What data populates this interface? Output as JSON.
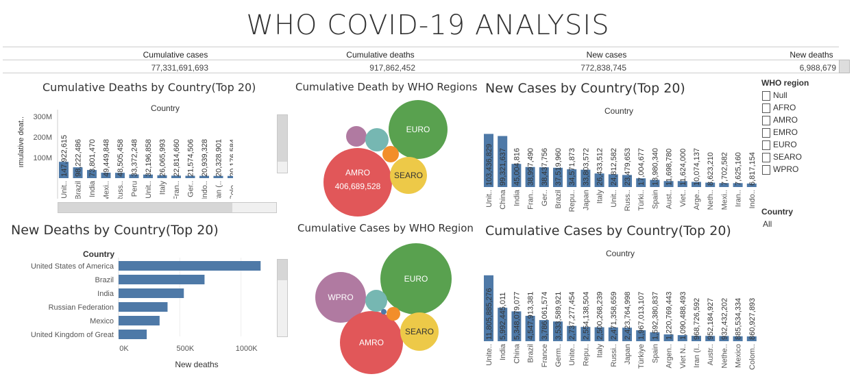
{
  "title": "WHO COVID-19 ANALYSIS",
  "kpis": [
    {
      "label": "Cumulative cases",
      "value": "77,331,691,693"
    },
    {
      "label": "Cumulative deaths",
      "value": "917,862,452"
    },
    {
      "label": "New cases",
      "value": "772,838,745"
    },
    {
      "label": "New deaths",
      "value": "6,988,679"
    }
  ],
  "filters": {
    "who_region_title": "WHO region",
    "who_regions": [
      "Null",
      "AFRO",
      "AMRO",
      "EMRO",
      "EURO",
      "SEARO",
      "WPRO"
    ],
    "country_title": "Country",
    "country_value": "All"
  },
  "colors": {
    "bar": "#4e79a7",
    "euro": "#59a14f",
    "amro": "#e15759",
    "searo": "#edc948",
    "wpro": "#b07aa1",
    "teal": "#76b7b2",
    "orange": "#f28e2b",
    "blue": "#4e79a7"
  },
  "chart_data": [
    {
      "id": "cum_deaths_country",
      "type": "bar",
      "title": "Cumulative Deaths by Country(Top 20)",
      "header": "Country",
      "ylabel": "ımulative deat..",
      "yticks": [
        "300M",
        "200M",
        "100M"
      ],
      "ylim": [
        0,
        360000000
      ],
      "categories": [
        "Unit..",
        "Brazil",
        "India",
        "Mexi..",
        "Russ..",
        "Peru",
        "Unit..",
        "Italy",
        "Fran..",
        "Ger..",
        "Indo..",
        "Iran (..",
        "Colo..",
        "Arge..",
        "Spain",
        "Pola.."
      ],
      "values": [
        147922615,
        98222486,
        73801470,
        49449848,
        48505458,
        33372248,
        32196858,
        26065993,
        22814660,
        21574506,
        20939328,
        20328901,
        20176584,
        18855200,
        17445007,
        15716319
      ],
      "labels": [
        "147,922,615",
        "98,222,486",
        "73,801,470",
        "49,449,848",
        "48,505,458",
        "33,372,248",
        "32,196,858",
        "26,065,993",
        "22,814,660",
        "21,574,506",
        "20,939,328",
        "20,328,901",
        "20,176,584",
        "18,855,200",
        "17,445,007",
        "15,716,319"
      ],
      "label_text": [
        "147,922,615",
        "98,222,486",
        "73,801,470",
        "49,449,848",
        "48,505,458",
        "33,372,248",
        "32,196,858",
        "26,065,993",
        "22,814,660",
        "21,574,506",
        "20,939,328",
        "20,328,901",
        "20,176,584",
        "18,855,200",
        "17,445,007",
        "15,716,319"
      ]
    },
    {
      "id": "cum_death_region",
      "type": "bubble",
      "title": "Cumulative Death by WHO Regions",
      "bubbles": [
        {
          "name": "EURO",
          "label": "EURO",
          "value": null,
          "color": "euro"
        },
        {
          "name": "AMRO",
          "label": "AMRO",
          "value": 406689528,
          "value_label": "406,689,528",
          "color": "amro"
        },
        {
          "name": "SEARO",
          "label": "SEARO",
          "value": null,
          "color": "searo"
        },
        {
          "name": "WPRO",
          "label": "",
          "value": null,
          "color": "wpro"
        },
        {
          "name": "EMRO",
          "label": "",
          "value": null,
          "color": "teal"
        },
        {
          "name": "AFRO",
          "label": "",
          "value": null,
          "color": "orange"
        }
      ]
    },
    {
      "id": "new_cases_country",
      "type": "bar",
      "title": "New Cases by Country(Top 20)",
      "header": "Country",
      "ylim": [
        0,
        120000000
      ],
      "categories": [
        "Unit..",
        "China",
        "India",
        "Fran..",
        "Ger..",
        "Brazil",
        "Repu..",
        "Japan",
        "Italy",
        "Unit..",
        "Russ..",
        "Türki..",
        "Spain",
        "Aust..",
        "Viet..",
        "Arge..",
        "Neth..",
        "Mexi..",
        "Iran..",
        "Indo.."
      ],
      "values": [
        103436829,
        99321637,
        45004816,
        38997490,
        38437756,
        37519960,
        34571873,
        33803572,
        26433512,
        24812582,
        23479653,
        17004677,
        13980340,
        11698780,
        11624000,
        10074137,
        8623210,
        7702582,
        7625160,
        6817154
      ],
      "labels": [
        "103,436,829",
        "99,321,637",
        "45,004,816",
        "38,997,490",
        "38,437,756",
        "37,519,960",
        "34,571,873",
        "33,803,572",
        "26,433,512",
        "24,812,582",
        "23,479,653",
        "17,004,677",
        "13,980,340",
        "11,698,780",
        "11,624,000",
        "10,074,137",
        "8,623,210",
        "7,702,582",
        "7,625,160",
        "6,817,154"
      ]
    },
    {
      "id": "new_deaths_country",
      "type": "hbar",
      "title": "New Deaths by Country(Top 20)",
      "header": "Country",
      "xlabel": "New deaths",
      "xticks": [
        "0K",
        "500K",
        "1000K"
      ],
      "xlim": [
        0,
        1220000
      ],
      "categories": [
        "United States of America",
        "Brazil",
        "India",
        "Russian Federation",
        "Mexico",
        "United Kingdom of Great"
      ],
      "values": [
        1160000,
        702000,
        533000,
        400000,
        335000,
        230000
      ]
    },
    {
      "id": "cum_cases_region",
      "type": "bubble",
      "title": "Cumulative Cases by WHO Region",
      "bubbles": [
        {
          "name": "EURO",
          "label": "EURO",
          "color": "euro"
        },
        {
          "name": "WPRO",
          "label": "WPRO",
          "color": "wpro"
        },
        {
          "name": "AMRO",
          "label": "AMRO",
          "color": "amro"
        },
        {
          "name": "SEARO",
          "label": "SEARO",
          "color": "searo"
        },
        {
          "name": "EMRO",
          "label": "",
          "color": "teal"
        },
        {
          "name": "AFRO",
          "label": "",
          "color": "orange"
        },
        {
          "name": "Null",
          "label": "",
          "color": "blue"
        }
      ]
    },
    {
      "id": "cum_cases_country",
      "type": "bar",
      "title": "Cumulative Cases by Country(Top 20)",
      "header": "Country",
      "ylim": [
        0,
        13500000000
      ],
      "categories": [
        "Unite..",
        "India",
        "China",
        "Brazil",
        "France",
        "Germ..",
        "Unite..",
        "Repu..",
        "Italy",
        "Russi..",
        "Japan",
        "Türkiye",
        "Spain",
        "Argen..",
        "Viet N..",
        "Iran (I..",
        "Austr..",
        "Nethe..",
        "Mexico",
        "Colom.."
      ],
      "values": [
        11805885276,
        5992445011,
        5348079077,
        4547913381,
        3786061574,
        3533589921,
        2737277454,
        2554138504,
        2500268239,
        2471358659,
        2423764998,
        1967013107,
        1592380837,
        1220769443,
        1090488493,
        968726592,
        952184927,
        932432202,
        885534334,
        860927893
      ],
      "labels": [
        "11,805,885,276",
        "5,992,445,011",
        "5,348,079,077",
        "4,547,913,381",
        "3,786,061,574",
        "3,533,589,921",
        "2,737,277,454",
        "2,554,138,504",
        "2,500,268,239",
        "2,471,358,659",
        "2,423,764,998",
        "1,967,013,107",
        "1,592,380,837",
        "1,220,769,443",
        "1,090,488,493",
        "968,726,592",
        "952,184,927",
        "932,432,202",
        "885,534,334",
        "860,927,893"
      ]
    }
  ]
}
